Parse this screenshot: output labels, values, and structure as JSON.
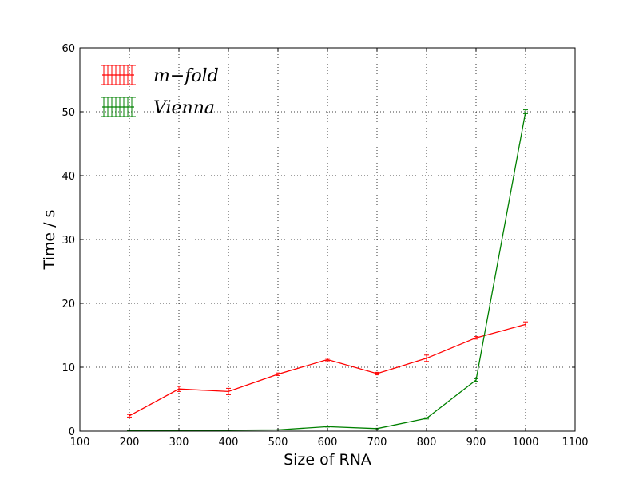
{
  "chart_data": {
    "type": "line",
    "title": "",
    "xlabel": "Size of RNA",
    "ylabel": "Time / s",
    "xlim": [
      100,
      1100
    ],
    "ylim": [
      0,
      60
    ],
    "xticks": [
      100,
      200,
      300,
      400,
      500,
      600,
      700,
      800,
      900,
      1000,
      1100
    ],
    "yticks": [
      0,
      10,
      20,
      30,
      40,
      50,
      60
    ],
    "grid": true,
    "legend_position": "top-left",
    "x": [
      200,
      300,
      400,
      500,
      600,
      700,
      800,
      900,
      1000
    ],
    "series": [
      {
        "name": "m−fold",
        "color": "#ff0000",
        "values": [
          2.4,
          6.6,
          6.2,
          8.9,
          11.2,
          9.0,
          11.4,
          14.6,
          16.7
        ],
        "errors": [
          0.2,
          0.4,
          0.5,
          0.2,
          0.2,
          0.2,
          0.5,
          0.2,
          0.4
        ]
      },
      {
        "name": "Vienna",
        "color": "#008000",
        "values": [
          0.05,
          0.1,
          0.15,
          0.2,
          0.7,
          0.4,
          2.0,
          8.0,
          50.0
        ],
        "errors": [
          0.02,
          0.02,
          0.02,
          0.02,
          0.05,
          0.05,
          0.1,
          0.2,
          0.3
        ]
      }
    ]
  }
}
